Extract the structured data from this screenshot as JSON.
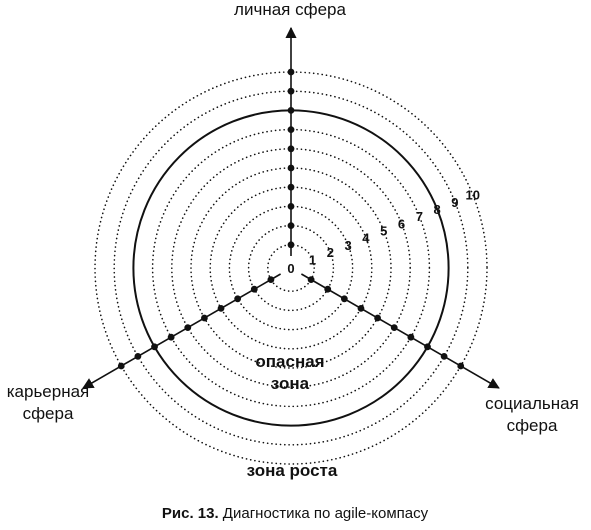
{
  "axes": {
    "top": "личная сфера",
    "left_line1": "карьерная",
    "left_line2": "сфера",
    "right_line1": "социальная",
    "right_line2": "сфера"
  },
  "scale": [
    "0",
    "1",
    "2",
    "3",
    "4",
    "5",
    "6",
    "7",
    "8",
    "9",
    "10"
  ],
  "zones": {
    "inner_line1": "опасная",
    "inner_line2": "зона",
    "outer": "зона роста"
  },
  "caption": {
    "label": "Рис. 13.",
    "text": " Диагностика по agile-компасу"
  },
  "rings": {
    "count": 10,
    "solid_level": 8,
    "dotted_levels": [
      1,
      2,
      3,
      4,
      5,
      6,
      7,
      9,
      10
    ]
  },
  "colors": {
    "ink": "#111111",
    "background": "#ffffff"
  }
}
